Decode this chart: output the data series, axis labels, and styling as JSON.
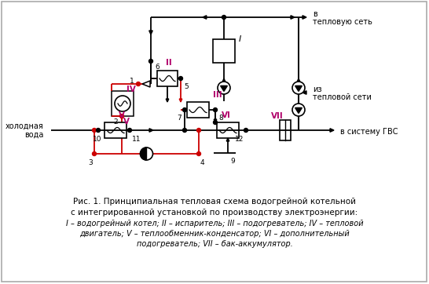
{
  "title": "Рис. 1. Принципиальная тепловая схема водогрейной котельной",
  "subtitle1": "с интегрированной установкой по производству электроэнергии:",
  "subtitle2": "I – водогрейный котел; II – испаритель; III – подогреватель; IV – тепловой",
  "subtitle3": "двигатель; V – теплообменник-конденсатор; VI – дополнительный",
  "subtitle4": "подогреватель; VII – бак-аккумулятор.",
  "line_color": "#000000",
  "red_color": "#cc0000",
  "pink_label_color": "#b0006a",
  "bg_color": "#ffffff"
}
